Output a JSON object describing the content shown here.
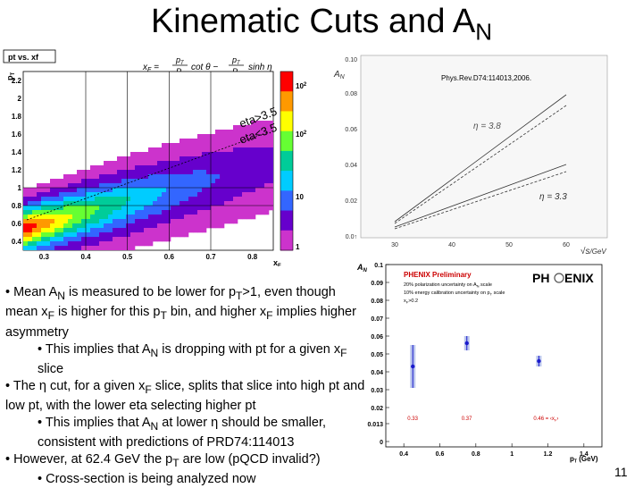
{
  "slide": {
    "title_main": "Kinematic Cuts and A",
    "title_sub": "N",
    "number": "11"
  },
  "heatmap": {
    "hist_title": "pt vs. xf",
    "x_label": "x",
    "x_label_sub": "F",
    "y_label": "p",
    "y_label_sub": "T",
    "x_ticks": [
      "0.3",
      "0.4",
      "0.5",
      "0.6",
      "0.7",
      "0.8"
    ],
    "y_ticks": [
      "2.2",
      "2",
      "1.8",
      "1.6",
      "1.4",
      "1.2",
      "1",
      "0.8",
      "0.6",
      "0.4"
    ],
    "color_ticks": [
      {
        "base": "10",
        "exp": "2"
      },
      {
        "base": "10",
        "exp": "2"
      },
      {
        "base": "10",
        "exp": ""
      },
      {
        "base": "1",
        "exp": ""
      }
    ],
    "colors": [
      "#ff0000",
      "#ff9900",
      "#ffff00",
      "#66ff33",
      "#00cc99",
      "#00ccff",
      "#3366ff",
      "#6600cc",
      "#cc33cc"
    ],
    "eta_gt": "eta>3.5",
    "eta_lt": "eta<3.5",
    "formula_xf": "x",
    "formula_xf_sub": "F",
    "formula_eq1": "=",
    "formula_pt": "p",
    "formula_pt_sub": "T",
    "formula_p": "P",
    "formula_cot": "cot θ −",
    "formula_pt2": "p",
    "formula_pt2_sub": "T",
    "formula_p2": "P",
    "formula_sinh": "sinh η"
  },
  "theory_plot": {
    "citation": "Phys.Rev.D74:114013,2006.",
    "y_label": "A",
    "y_label_sub": "N",
    "x_label": "√s",
    "x_unit": "GeV",
    "y_ticks": [
      "0.10",
      "0.08",
      "0.06",
      "0.04",
      "0.02",
      "0.0↑"
    ],
    "x_ticks": [
      "30",
      "40",
      "50",
      "60"
    ],
    "eta_label_upper": "η = 3.8",
    "eta_label_lower": "η = 3.3"
  },
  "chart_data": {
    "type": "scatter",
    "title": "PHENIX Preliminary",
    "xlabel": "p",
    "xlabel_sub": "T",
    "xlabel_unit": "(GeV)",
    "ylabel": "A",
    "ylabel_sub": "N",
    "xlim": [
      0.3,
      1.5
    ],
    "ylim": [
      0,
      0.1
    ],
    "x_ticks": [
      "0.4",
      "0.6",
      "0.8",
      "1",
      "1.2",
      "1.4"
    ],
    "y_ticks": [
      "0.1",
      "0.09",
      "0.08",
      "0.07",
      "0.06",
      "0.05",
      "0.04",
      "0.03",
      "0.02",
      "0.013",
      "0"
    ],
    "notes": [
      "20% polarization uncertainty on A",
      "N",
      " scale",
      "10% energy calibration uncertainty on p",
      "T",
      " scale",
      "x",
      "F",
      ">0.2"
    ],
    "logo_left": "PH",
    "logo_right": "ENIX",
    "points": [
      {
        "x": 0.45,
        "y": 0.043,
        "err": 0.012,
        "label": "0.33"
      },
      {
        "x": 0.75,
        "y": 0.056,
        "err": 0.004,
        "label": "0.37"
      },
      {
        "x": 1.15,
        "y": 0.046,
        "err": 0.003,
        "label": "0.46"
      }
    ],
    "label_suffix": "= ‹x",
    "label_suffix_sub": "F",
    "label_suffix_end": "›"
  },
  "bullets": {
    "b1_a": "• Mean A",
    "b1_a_sub": "N",
    "b1_b": " is measured to be lower for p",
    "b1_b_sub": "T",
    "b1_c": ">1, even though mean x",
    "b1_c_sub": "F",
    "b1_d": " is higher for this p",
    "b1_d_sub": "T",
    "b1_e": " bin, and higher x",
    "b1_e_sub": "F",
    "b1_f": " implies higher asymmetry",
    "b2_a": "• This implies that A",
    "b2_a_sub": "N",
    "b2_b": " is dropping with pt for a given x",
    "b2_b_sub": "F",
    "b2_c": " slice",
    "b3_a": "• The η cut, for a given x",
    "b3_a_sub": "F",
    "b3_b": " slice, splits that slice into high pt and low pt, with the lower eta selecting higher pt",
    "b4_a": "• This implies that A",
    "b4_a_sub": "N",
    "b4_b": " at lower η should be smaller, consistent with predictions of PRD74:114013",
    "b5_a": "• However, at 62.4 GeV the p",
    "b5_a_sub": "T",
    "b5_b": " are low (pQCD invalid?)",
    "b6_a": "• Cross-section is being analyzed now"
  }
}
